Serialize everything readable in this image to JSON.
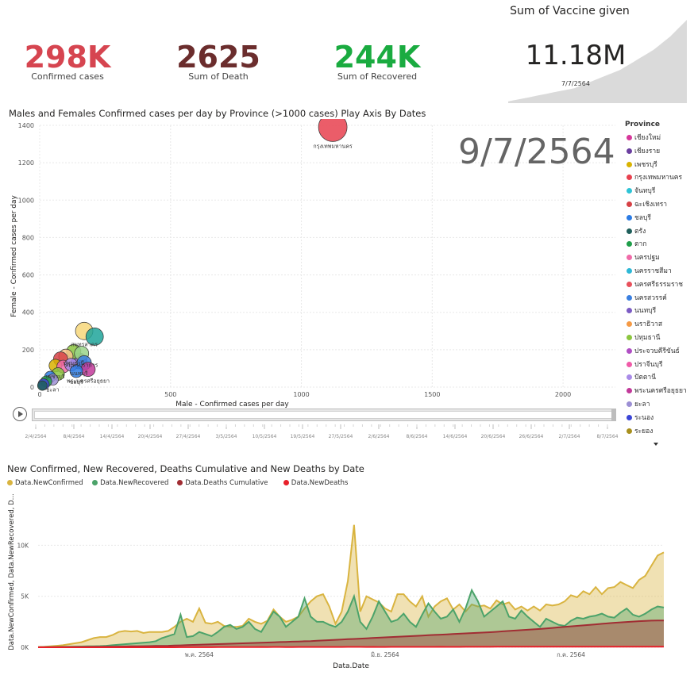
{
  "kpis": {
    "confirmed": {
      "value": "298K",
      "label": "Confirmed cases",
      "color": "#D64550"
    },
    "deaths": {
      "value": "2625",
      "label": "Sum of Death",
      "color": "#6B2D2D"
    },
    "recovered": {
      "value": "244K",
      "label": "Sum of Recovered",
      "color": "#1AAB40"
    }
  },
  "vaccine": {
    "title": "Sum of Vaccine given",
    "value": "11.18M",
    "date": "7/7/2564",
    "trend": [
      0.02,
      0.03,
      0.04,
      0.05,
      0.06,
      0.07,
      0.08,
      0.09,
      0.1,
      0.11,
      0.12,
      0.13,
      0.14,
      0.15,
      0.16,
      0.17,
      0.18,
      0.2,
      0.22,
      0.24,
      0.26,
      0.28,
      0.3,
      0.32,
      0.34,
      0.36,
      0.38,
      0.4,
      0.43,
      0.46,
      0.49,
      0.52,
      0.55,
      0.58,
      0.61,
      0.64,
      0.68,
      0.72,
      0.76,
      0.8,
      0.85,
      0.9,
      0.95,
      1.0
    ]
  },
  "scatter": {
    "title": "Males and Females Confirmed cases per day by Province (>1000 cases) Play Axis By Dates",
    "date_watermark": "9/7/2564",
    "play_axis_ticks": [
      "2/4/2564",
      "8/4/2564",
      "14/4/2564",
      "20/4/2564",
      "27/4/2564",
      "3/5/2564",
      "10/5/2564",
      "19/5/2564",
      "27/5/2564",
      "2/6/2564",
      "8/6/2564",
      "14/6/2564",
      "20/6/2564",
      "26/6/2564",
      "2/7/2564",
      "8/7/2564"
    ],
    "legend_title": "Province",
    "legend": [
      {
        "name": "เชียงใหม่",
        "color": "#D6379A"
      },
      {
        "name": "เชียงราย",
        "color": "#6B3FA0"
      },
      {
        "name": "เพชรบุรี",
        "color": "#D9B300"
      },
      {
        "name": "กรุงเทพมหานคร",
        "color": "#E8414F"
      },
      {
        "name": "จันทบุรี",
        "color": "#2EC4D6"
      },
      {
        "name": "ฉะเชิงเทรา",
        "color": "#D64045"
      },
      {
        "name": "ชลบุรี",
        "color": "#2B7BE4"
      },
      {
        "name": "ตรัง",
        "color": "#1F5F5B"
      },
      {
        "name": "ตาก",
        "color": "#1F9E4A"
      },
      {
        "name": "นครปฐม",
        "color": "#F06BA8"
      },
      {
        "name": "นครราชสีมา",
        "color": "#2EB8D6"
      },
      {
        "name": "นครศรีธรรมราช",
        "color": "#E8505B"
      },
      {
        "name": "นครสวรรค์",
        "color": "#3A7FE0"
      },
      {
        "name": "นนทบุรี",
        "color": "#7C5CC4"
      },
      {
        "name": "นราธิวาส",
        "color": "#F59A45"
      },
      {
        "name": "ปทุมธานี",
        "color": "#8CC63F"
      },
      {
        "name": "ประจวบคีรีขันธ์",
        "color": "#B04FC4"
      },
      {
        "name": "ปราจีนบุรี",
        "color": "#F05AA8"
      },
      {
        "name": "ปัตตานี",
        "color": "#A98BE8"
      },
      {
        "name": "พระนครศรีอยุธยา",
        "color": "#C23A9A"
      },
      {
        "name": "ยะลา",
        "color": "#9C8FD4"
      },
      {
        "name": "ระนอง",
        "color": "#3A45D6"
      },
      {
        "name": "ระยอง",
        "color": "#A8901E"
      }
    ],
    "chart_data": {
      "type": "scatter",
      "xlabel": "Male - Confirmed cases per day",
      "ylabel": "Female - Confirmed cases per day",
      "xlim": [
        0,
        2200
      ],
      "ylim": [
        0,
        1400
      ],
      "x_ticks": [
        0,
        500,
        1000,
        1500,
        2000
      ],
      "y_ticks": [
        0,
        200,
        400,
        600,
        800,
        1000,
        1200,
        1400
      ],
      "points": [
        {
          "label": "กรุงเทพมหานคร",
          "x": 1120,
          "y": 1390,
          "size": 18,
          "color": "#E8414F"
        },
        {
          "label": "สมุทรสาคร",
          "x": 170,
          "y": 300,
          "size": 11,
          "color": "#F7D77A"
        },
        {
          "label": "",
          "x": 210,
          "y": 270,
          "size": 11,
          "color": "#1FA59A"
        },
        {
          "label": "ปทุมธานี",
          "x": 130,
          "y": 190,
          "size": 9,
          "color": "#8CC63F"
        },
        {
          "label": "สมุทรปราการ",
          "x": 160,
          "y": 180,
          "size": 9,
          "color": "#9AD48A"
        },
        {
          "label": "",
          "x": 100,
          "y": 165,
          "size": 9,
          "color": "#F7C38A"
        },
        {
          "label": "",
          "x": 80,
          "y": 150,
          "size": 9,
          "color": "#D64045"
        },
        {
          "label": "นนทบุรี",
          "x": 150,
          "y": 140,
          "size": 10,
          "color": "#7C5CC4"
        },
        {
          "label": "",
          "x": 170,
          "y": 130,
          "size": 9,
          "color": "#3A7FE0"
        },
        {
          "label": "เพชรบุรี",
          "x": 60,
          "y": 115,
          "size": 8,
          "color": "#D9B300"
        },
        {
          "label": "",
          "x": 90,
          "y": 110,
          "size": 8,
          "color": "#F06BA8"
        },
        {
          "label": "",
          "x": 120,
          "y": 120,
          "size": 8,
          "color": "#A98BE8"
        },
        {
          "label": "พระนครศรีอยุธยา",
          "x": 185,
          "y": 95,
          "size": 9,
          "color": "#C23A9A"
        },
        {
          "label": "ชลบุรี",
          "x": 140,
          "y": 85,
          "size": 8,
          "color": "#2B7BE4"
        },
        {
          "label": "",
          "x": 70,
          "y": 70,
          "size": 8,
          "color": "#8CC63F"
        },
        {
          "label": "",
          "x": 40,
          "y": 55,
          "size": 7,
          "color": "#2B7BE4"
        },
        {
          "label": "ยะลา",
          "x": 50,
          "y": 40,
          "size": 7,
          "color": "#9C8FD4"
        },
        {
          "label": "",
          "x": 25,
          "y": 30,
          "size": 7,
          "color": "#1F9E4A"
        },
        {
          "label": "",
          "x": 15,
          "y": 15,
          "size": 7,
          "color": "#3A45D6"
        },
        {
          "label": "",
          "x": 10,
          "y": 8,
          "size": 6,
          "color": "#1F5F5B"
        }
      ]
    }
  },
  "area": {
    "title": "New Confirmed, New Recovered, Deaths Cumulative and New Deaths by Date",
    "chart_data": {
      "type": "area",
      "xlabel": "Data.Date",
      "ylabel": "Data.NewConfirmed, Data.NewRecovered, D...",
      "ylim": [
        0,
        14000
      ],
      "y_ticks": [
        {
          "v": 0,
          "label": "0K"
        },
        {
          "v": 5000,
          "label": "5K"
        },
        {
          "v": 10000,
          "label": "10K"
        }
      ],
      "x_ticks": [
        {
          "i": 26,
          "label": "พ.ค. 2564"
        },
        {
          "i": 56,
          "label": "มิ.ย. 2564"
        },
        {
          "i": 86,
          "label": "ก.ค. 2564"
        }
      ],
      "series": [
        {
          "name": "Data.NewConfirmed",
          "color": "#D9B440",
          "values": [
            30,
            50,
            100,
            150,
            200,
            300,
            400,
            500,
            700,
            900,
            1000,
            1000,
            1200,
            1500,
            1600,
            1550,
            1600,
            1400,
            1500,
            1500,
            1500,
            1600,
            2000,
            2500,
            2800,
            2500,
            3800,
            2400,
            2300,
            2500,
            2100,
            2000,
            2000,
            2100,
            2800,
            2500,
            2300,
            2600,
            3700,
            3000,
            2500,
            2700,
            3000,
            3800,
            4500,
            5000,
            5200,
            4000,
            2300,
            3500,
            6500,
            12000,
            3500,
            5000,
            4700,
            4400,
            3800,
            3500,
            5200,
            5200,
            4500,
            4000,
            5000,
            3000,
            4000,
            4500,
            4800,
            3700,
            4200,
            3500,
            4200,
            4000,
            4100,
            3800,
            4600,
            4200,
            4400,
            3700,
            4000,
            3600,
            4000,
            3600,
            4200,
            4100,
            4200,
            4500,
            5100,
            4900,
            5500,
            5200,
            5900,
            5200,
            5800,
            5900,
            6400,
            6100,
            5800,
            6600,
            7000,
            8000,
            9000,
            9300
          ]
        },
        {
          "name": "Data.NewRecovered",
          "color": "#4CA36A",
          "values": [
            10,
            20,
            30,
            40,
            50,
            60,
            70,
            80,
            90,
            100,
            120,
            150,
            200,
            250,
            300,
            350,
            400,
            450,
            500,
            600,
            900,
            1100,
            1300,
            3200,
            1000,
            1100,
            1500,
            1300,
            1100,
            1500,
            2000,
            2200,
            1800,
            2000,
            2500,
            1800,
            1500,
            2500,
            3500,
            3000,
            2000,
            2500,
            3000,
            4800,
            3000,
            2500,
            2500,
            2200,
            2000,
            2500,
            3500,
            5000,
            2500,
            1800,
            3000,
            4500,
            3500,
            2500,
            2700,
            3300,
            2500,
            2000,
            3200,
            4300,
            3500,
            2800,
            3000,
            3700,
            2500,
            3800,
            5600,
            4500,
            3000,
            3500,
            4000,
            4500,
            3000,
            2800,
            3600,
            3000,
            2500,
            2000,
            2800,
            2500,
            2200,
            2100,
            2600,
            2900,
            2800,
            3000,
            3100,
            3300,
            3000,
            2900,
            3400,
            3800,
            3200,
            3000,
            3300,
            3700,
            4000,
            3900
          ]
        },
        {
          "name": "Data.Deaths Cumulative",
          "color": "#A12D33",
          "values": [
            0,
            5,
            10,
            15,
            20,
            25,
            30,
            35,
            40,
            45,
            50,
            55,
            60,
            70,
            80,
            90,
            100,
            110,
            120,
            130,
            140,
            150,
            170,
            190,
            210,
            230,
            250,
            270,
            290,
            310,
            330,
            350,
            370,
            390,
            410,
            430,
            450,
            470,
            490,
            510,
            530,
            550,
            570,
            590,
            610,
            640,
            670,
            700,
            730,
            760,
            790,
            820,
            850,
            880,
            910,
            940,
            970,
            1000,
            1030,
            1060,
            1090,
            1120,
            1150,
            1180,
            1210,
            1240,
            1270,
            1300,
            1330,
            1360,
            1390,
            1420,
            1450,
            1480,
            1520,
            1560,
            1600,
            1640,
            1680,
            1720,
            1760,
            1800,
            1850,
            1900,
            1950,
            2000,
            2050,
            2100,
            2150,
            2200,
            2250,
            2300,
            2350,
            2400,
            2440,
            2480,
            2520,
            2560,
            2590,
            2610,
            2620,
            2625
          ]
        },
        {
          "name": "Data.NewDeaths",
          "color": "#E8202A",
          "values": [
            0,
            0,
            0,
            0,
            0,
            0,
            0,
            0,
            0,
            0,
            0,
            0,
            0,
            0,
            0,
            0,
            1,
            1,
            2,
            2,
            2,
            3,
            3,
            4,
            5,
            5,
            6,
            8,
            10,
            12,
            15,
            18,
            20,
            18,
            22,
            25,
            28,
            26,
            30,
            31,
            25,
            27,
            30,
            32,
            28,
            30,
            35,
            32,
            30,
            34,
            36,
            40,
            38,
            35,
            37,
            34,
            33,
            36,
            38,
            40,
            42,
            38,
            36,
            40,
            42,
            44,
            40,
            38,
            42,
            45,
            48,
            44,
            46,
            50,
            52,
            55,
            58,
            60,
            62,
            58,
            60,
            55,
            52,
            58,
            60,
            62,
            58,
            60,
            62,
            58,
            55,
            60,
            62,
            58,
            60,
            62,
            58,
            60,
            62,
            63,
            64,
            65
          ]
        }
      ]
    }
  }
}
